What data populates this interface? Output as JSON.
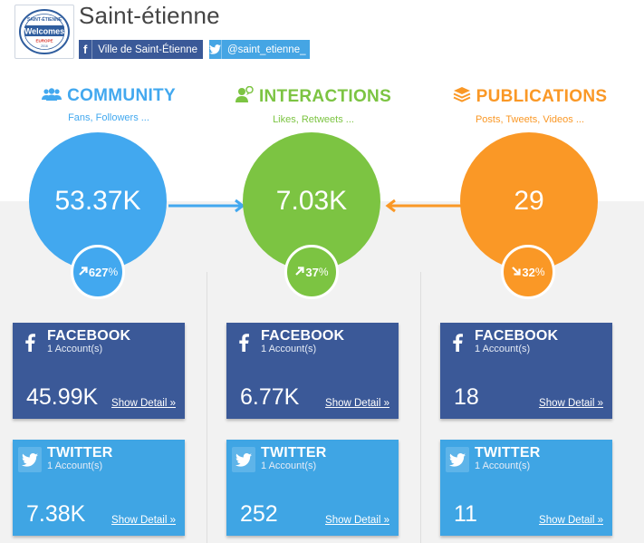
{
  "header": {
    "title": "Saint-étienne",
    "logo_text": "Saint-Étienne Welcomes Europe 2016",
    "facebook_label": "Ville de Saint-Étienne",
    "twitter_label": "@saint_etienne_"
  },
  "columns": [
    {
      "title": "COMMUNITY",
      "subtitle": "Fans, Followers ...",
      "icon": "users-icon",
      "color": "#42a8ef",
      "total": "53.37K",
      "trend": "up",
      "change": "627",
      "change_unit": "%",
      "facebook": {
        "name": "FACEBOOK",
        "accounts": "1 Account(s)",
        "value": "45.99K",
        "detail": "Show Detail »"
      },
      "twitter": {
        "name": "TWITTER",
        "accounts": "1 Account(s)",
        "value": "7.38K",
        "detail": "Show Detail »"
      }
    },
    {
      "title": "INTERACTIONS",
      "subtitle": "Likes, Retweets ...",
      "icon": "user-talk-icon",
      "color": "#7cc442",
      "total": "7.03K",
      "trend": "up",
      "change": "37",
      "change_unit": "%",
      "facebook": {
        "name": "FACEBOOK",
        "accounts": "1 Account(s)",
        "value": "6.77K",
        "detail": "Show Detail »"
      },
      "twitter": {
        "name": "TWITTER",
        "accounts": "1 Account(s)",
        "value": "252",
        "detail": "Show Detail »"
      }
    },
    {
      "title": "PUBLICATIONS",
      "subtitle": "Posts, Tweets, Videos ...",
      "icon": "stack-icon",
      "color": "#fa9826",
      "total": "29",
      "trend": "down",
      "change": "32",
      "change_unit": "%",
      "facebook": {
        "name": "FACEBOOK",
        "accounts": "1 Account(s)",
        "value": "18",
        "detail": "Show Detail »"
      },
      "twitter": {
        "name": "TWITTER",
        "accounts": "1 Account(s)",
        "value": "11",
        "detail": "Show Detail »"
      }
    }
  ]
}
